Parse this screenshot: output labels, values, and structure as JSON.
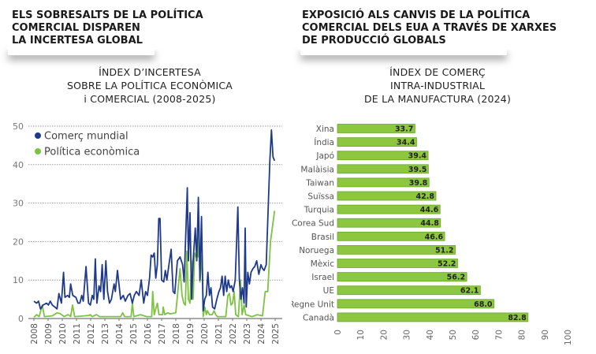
{
  "left_heading": [
    "ELS SOBRESALTS DE LA POLÍTICA",
    "COMERCIAL DISPAREN",
    "LA INCERTESA GLOBAL"
  ],
  "right_heading": [
    "EXPOSICIÓ ALS CANVIS DE LA POLÍTICA",
    "COMERCIAL DELS EUA A TRAVÉS DE XARXES",
    "DE PRODUCCIÓ GLOBALS"
  ],
  "colors": {
    "blue": "#1f3a8a",
    "green": "#7dc242",
    "bar": "#8dc63f",
    "bar_edge": "#6aa82a"
  },
  "chart_data": [
    {
      "type": "line",
      "title": [
        "ÍNDEX D’INCERTESA",
        "SOBRE LA POLÍTICA ECONÒMICA",
        "i COMERCIAL (2008-2025)"
      ],
      "xlim": [
        2008,
        2025
      ],
      "ylim": [
        0,
        50
      ],
      "yticks": [
        "0",
        "10",
        "20",
        "30",
        "40",
        "50"
      ],
      "xticks": [
        "2008",
        "2009",
        "2010",
        "2011",
        "2012",
        "2013",
        "2014",
        "2015",
        "2016",
        "2017",
        "2018",
        "2019",
        "2020",
        "2021",
        "2022",
        "2023",
        "2024",
        "2025"
      ],
      "grid": true,
      "legend": "top-left",
      "series": [
        {
          "name": "Comerç mundial",
          "color": "#1f3a8a",
          "x": [
            2008.0,
            2008.19,
            2008.33,
            2008.46,
            2008.65,
            2008.89,
            2009.02,
            2009.15,
            2009.3,
            2009.48,
            2009.63,
            2009.76,
            2009.94,
            2010.09,
            2010.19,
            2010.37,
            2010.5,
            2010.59,
            2010.74,
            2010.96,
            2011.11,
            2011.24,
            2011.37,
            2011.48,
            2011.67,
            2011.85,
            2011.98,
            2012.11,
            2012.22,
            2012.33,
            2012.44,
            2012.59,
            2012.7,
            2012.81,
            2012.93,
            2013.07,
            2013.19,
            2013.33,
            2013.46,
            2013.65,
            2013.74,
            2013.89,
            2014.11,
            2014.3,
            2014.44,
            2014.63,
            2014.78,
            2014.94,
            2015.07,
            2015.22,
            2015.41,
            2015.56,
            2015.74,
            2015.87,
            2016.0,
            2016.15,
            2016.26,
            2016.37,
            2016.48,
            2016.59,
            2016.7,
            2016.8,
            2016.89,
            2017.0,
            2017.15,
            2017.26,
            2017.37,
            2017.48,
            2017.67,
            2017.81,
            2017.93,
            2018.11,
            2018.3,
            2018.48,
            2018.59,
            2018.81,
            2018.89,
            2019.0,
            2019.11,
            2019.22,
            2019.37,
            2019.48,
            2019.59,
            2019.7,
            2019.81,
            2019.93,
            2020.04,
            2020.15,
            2020.26,
            2020.37,
            2020.48,
            2020.59,
            2020.74,
            2020.89,
            2021.04,
            2021.15,
            2021.26,
            2021.37,
            2021.48,
            2021.59,
            2021.7,
            2021.81,
            2021.93,
            2022.04,
            2022.19,
            2022.37,
            2022.48,
            2022.59,
            2022.7,
            2022.81,
            2022.89,
            2022.96,
            2023.07,
            2023.19,
            2023.3,
            2023.44,
            2023.56,
            2023.7,
            2023.85,
            2024.0,
            2024.11,
            2024.22,
            2024.37,
            2024.52,
            2024.63,
            2024.74,
            2024.85,
            2024.96
          ],
          "y": [
            4.5,
            4,
            4.5,
            2.5,
            3.5,
            4,
            3.5,
            4.5,
            3.5,
            3,
            2.5,
            6.5,
            4,
            12,
            5.5,
            6,
            5.5,
            9,
            6,
            5.5,
            4,
            4,
            6,
            4.5,
            13.5,
            4,
            3.5,
            6,
            5,
            15.5,
            4,
            8.5,
            7,
            14,
            5,
            15,
            7,
            4,
            5,
            9,
            7,
            12.5,
            5,
            6,
            4.5,
            6,
            6.5,
            4,
            6,
            7,
            6,
            10,
            4,
            7,
            6,
            10.5,
            16.5,
            16,
            17,
            10.5,
            14,
            26,
            26,
            10,
            9.5,
            12.5,
            10,
            13,
            18,
            7,
            6.5,
            15,
            16,
            14,
            9.5,
            34,
            15,
            27.5,
            5,
            15,
            23.5,
            15,
            31.5,
            10,
            26.5,
            2,
            5,
            6,
            12,
            6,
            8,
            3,
            2.5,
            5,
            7,
            8,
            11,
            6,
            11,
            7,
            10,
            8,
            8.5,
            7,
            10,
            29,
            10,
            5,
            8,
            4,
            23.5,
            3,
            12,
            9,
            12,
            13,
            13.5,
            15,
            11.5,
            14,
            13,
            12.5,
            14,
            30,
            41,
            49,
            42,
            41
          ]
        },
        {
          "name": "Política econòmica",
          "color": "#7dc242",
          "x": [
            2008.0,
            2008.19,
            2008.37,
            2008.59,
            2008.74,
            2009.3,
            2009.63,
            2009.85,
            2010.13,
            2010.41,
            2010.59,
            2010.72,
            2010.87,
            2011.89,
            2011.98,
            2012.11,
            2012.41,
            2012.63,
            2014.11,
            2014.26,
            2014.39,
            2014.85,
            2014.94,
            2015.04,
            2015.5,
            2015.96,
            2016.3,
            2016.37,
            2016.48,
            2016.7,
            2016.81,
            2017.07,
            2017.11,
            2017.22,
            2017.44,
            2017.59,
            2018.0,
            2018.3,
            2018.44,
            2018.56,
            2018.67,
            2018.78,
            2018.89,
            2019.0,
            2019.11,
            2019.22,
            2019.33,
            2019.44,
            2019.56,
            2019.63,
            2019.7,
            2019.85,
            2019.93,
            2020.04,
            2020.15,
            2020.22,
            2020.37,
            2020.56,
            2020.7,
            2020.81,
            2020.93,
            2021.52,
            2021.67,
            2021.78,
            2021.89,
            2022.0,
            2022.11,
            2022.22,
            2022.41,
            2022.56,
            2022.67,
            2022.81,
            2022.93,
            2023.37,
            2023.74,
            2024.11,
            2024.3,
            2024.48,
            2024.67,
            2024.96
          ],
          "y": [
            0.3,
            1,
            0.5,
            3.5,
            0.5,
            0.7,
            1.5,
            1.3,
            0.5,
            1,
            0.5,
            3.5,
            0.5,
            0.8,
            1,
            0.5,
            1,
            0.5,
            0.5,
            1.5,
            0.5,
            0.5,
            4,
            0.5,
            1,
            0.5,
            0.5,
            7,
            1,
            4,
            1,
            1,
            3,
            1,
            1.5,
            1.2,
            1.5,
            13,
            6,
            4,
            3.5,
            17.5,
            5,
            4,
            15,
            5,
            17,
            16,
            16,
            24.5,
            9.5,
            16.5,
            0.5,
            3,
            1,
            2,
            1,
            1,
            2,
            1,
            0.5,
            0.5,
            6,
            6.5,
            3.5,
            4,
            7,
            1,
            0.5,
            10,
            1,
            3.5,
            1,
            0.5,
            1,
            0.7,
            7,
            7,
            20,
            28
          ]
        }
      ]
    },
    {
      "type": "bar",
      "orientation": "horizontal",
      "title": [
        "ÍNDEX DE COMERÇ",
        "INTRA-INDUSTRIAL",
        "DE LA MANUFACTURA (2024)"
      ],
      "categories": [
        "Xina",
        "Índia",
        "Japó",
        "Malàisia",
        "Taiwan",
        "Suïssa",
        "Turquia",
        "Corea Sud",
        "Brasil",
        "Noruega",
        "Mèxic",
        "Israel",
        "UE",
        "Regne Unit",
        "Canadà"
      ],
      "values": [
        33.7,
        34.4,
        39.4,
        39.5,
        39.8,
        42.8,
        44.6,
        44.8,
        46.6,
        51.2,
        52.2,
        56.2,
        62.1,
        68.0,
        82.8
      ],
      "value_labels": [
        "33.7",
        "34.4",
        "39.4",
        "39.5",
        "39.8",
        "42.8",
        "44.6",
        "44.8",
        "46.6",
        "51.2",
        "52.2",
        "56.2",
        "62.1",
        "68.0",
        "82.8"
      ],
      "xlim": [
        0,
        100
      ],
      "xticks": [
        "0",
        "10",
        "20",
        "30",
        "40",
        "50",
        "60",
        "70",
        "80",
        "90",
        "100"
      ],
      "grid": false
    }
  ]
}
